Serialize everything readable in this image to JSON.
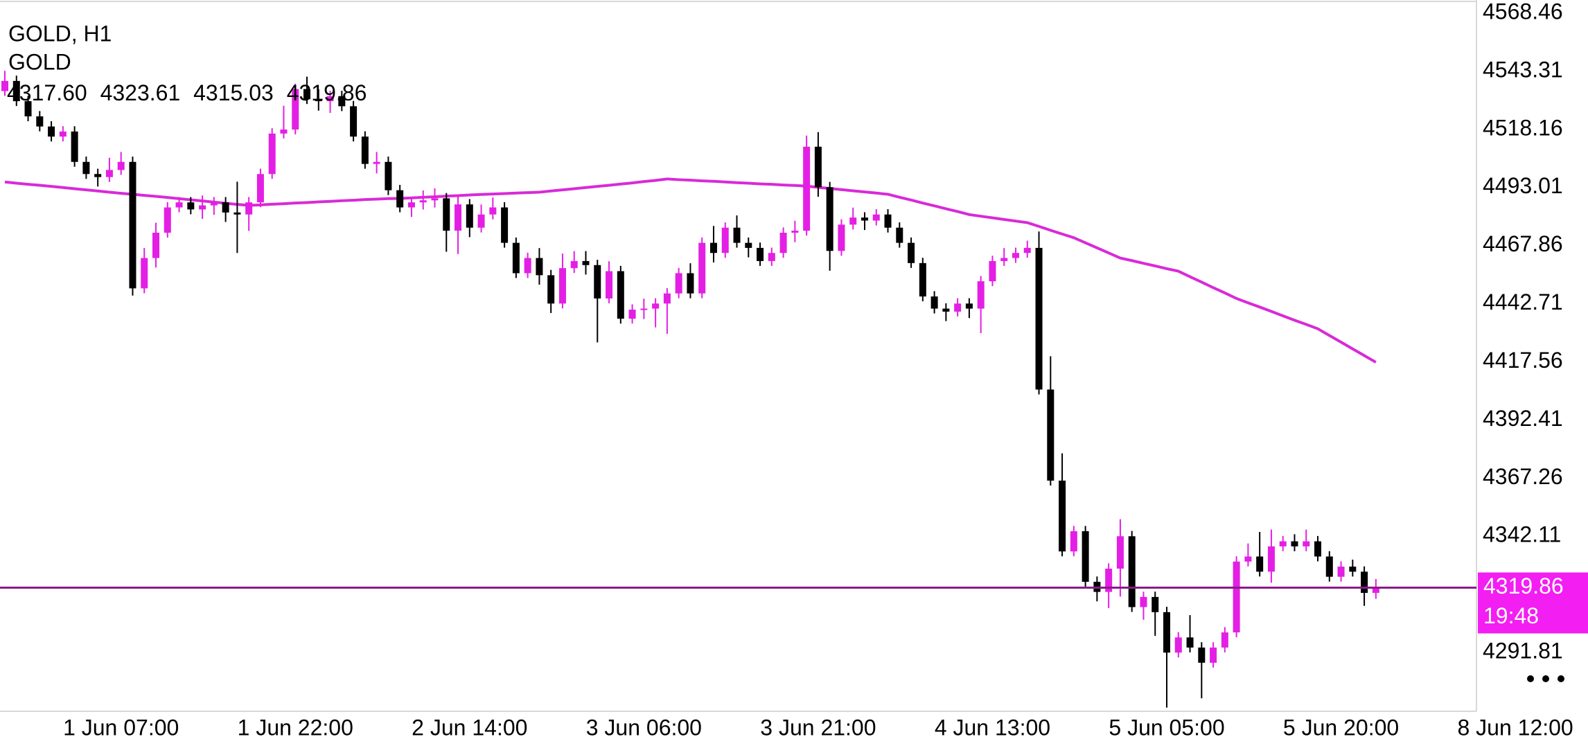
{
  "chart_data": {
    "type": "candlestick",
    "legend": {
      "title": "GOLD, H1",
      "symbol": "GOLD",
      "ohlc": [
        "4317.60",
        "4323.61",
        "4315.03",
        "4319.86"
      ]
    },
    "categories": [
      null,
      null,
      null,
      null,
      null,
      null,
      null,
      null,
      null,
      null,
      "1 Jun 07:00",
      null,
      null,
      null,
      null,
      null,
      null,
      null,
      null,
      null,
      null,
      null,
      null,
      null,
      null,
      "1 Jun 22:00",
      null,
      null,
      null,
      null,
      null,
      null,
      null,
      null,
      null,
      null,
      null,
      null,
      null,
      null,
      "2 Jun 14:00",
      null,
      null,
      null,
      null,
      null,
      null,
      null,
      null,
      null,
      null,
      null,
      null,
      null,
      null,
      "3 Jun 06:00",
      null,
      null,
      null,
      null,
      null,
      null,
      null,
      null,
      null,
      null,
      null,
      null,
      null,
      null,
      "3 Jun 21:00",
      null,
      null,
      null,
      null,
      null,
      null,
      null,
      null,
      null,
      null,
      null,
      null,
      null,
      null,
      "4 Jun 13:00",
      null,
      null,
      null,
      null,
      null,
      null,
      null,
      null,
      null,
      null,
      null,
      null,
      null,
      null,
      "5 Jun 05:00",
      null,
      null,
      null,
      null,
      null,
      null,
      null,
      null,
      null,
      null,
      null,
      null,
      null,
      null,
      "5 Jun 20:00",
      null,
      null,
      null,
      null,
      null,
      null,
      null,
      null,
      null,
      null,
      null,
      null,
      null,
      null,
      "8 Jun 12:00"
    ],
    "open": [
      4534.75,
      4539.13,
      4530.37,
      4523.8,
      4519.42,
      4515.05,
      4517.24,
      4504.1,
      4498.85,
      4497.53,
      4500.6,
      4504.1,
      4449.38,
      4462.51,
      4473.46,
      4484.4,
      4486.59,
      4483.53,
      4485.28,
      4486.59,
      4482.21,
      4481.34,
      4486.59,
      4498.85,
      4516.36,
      4518.11,
      4535.62,
      4531.25,
      4530.37,
      4532.56,
      4528.18,
      4515.05,
      4503.23,
      4504.1,
      4491.84,
      4484.4,
      4486.59,
      4487.47,
      4488.34,
      4474.33,
      4485.71,
      4475.64,
      4481.34,
      4484.4,
      4469.08,
      4455.94,
      4462.51,
      4455.07,
      4442.81,
      4458.13,
      4461.2,
      4459.45,
      4445.0,
      4456.82,
      4436.24,
      4440.18,
      4440.62,
      4442.81,
      4447.19,
      4455.94,
      4447.19,
      4469.08,
      4464.7,
      4475.64,
      4469.08,
      4466.89,
      4461.2,
      4464.7,
      4473.46,
      4474.33,
      4510.67,
      4493.16,
      4465.58,
      4476.96,
      4480.02,
      4478.71,
      4481.34,
      4475.64,
      4469.08,
      4460.32,
      4445.87,
      4440.62,
      4439.31,
      4442.81,
      4440.62,
      4452.44,
      4461.2,
      4462.51,
      4464.7,
      4466.89,
      4405.6,
      4366.19,
      4335.55,
      4344.3,
      4322.41,
      4318.04,
      4328.11,
      4342.12,
      4311.47,
      4315.85,
      4309.28,
      4291.77,
      4298.34,
      4293.96,
      4287.39,
      4293.96,
      4300.52,
      4331.17,
      4333.36,
      4326.79,
      4337.74,
      4339.93,
      4337.74,
      4339.93,
      4333.36,
      4324.6,
      4328.98,
      4326.79,
      4317.6,
      null,
      null,
      null,
      null,
      null,
      null,
      null,
      null,
      null,
      null,
      null,
      null
    ],
    "high": [
      4543.5,
      4541.43,
      4532.67,
      4526.1,
      4521.72,
      4519.54,
      4519.54,
      4506.4,
      4501.15,
      4505.9,
      4508.4,
      4506.4,
      4466.81,
      4477.76,
      4486.7,
      4488.89,
      4488.89,
      4489.58,
      4488.89,
      4488.89,
      4495.51,
      4488.89,
      4501.15,
      4518.66,
      4528.41,
      4537.92,
      4541.0,
      4535.55,
      4534.86,
      4534.86,
      4530.48,
      4517.35,
      4508.4,
      4506.4,
      4494.14,
      4488.89,
      4491.77,
      4492.64,
      4490.64,
      4490.01,
      4488.01,
      4485.64,
      4488.7,
      4486.7,
      4471.38,
      4464.81,
      4466.81,
      4457.37,
      4464.43,
      4465.5,
      4465.5,
      4461.75,
      4461.12,
      4459.12,
      4442.48,
      4444.92,
      4445.11,
      4449.49,
      4458.24,
      4460.24,
      4471.38,
      4476.38,
      4477.94,
      4480.94,
      4471.38,
      4469.19,
      4467.0,
      4475.76,
      4478.63,
      4515.5,
      4517.0,
      4495.46,
      4479.26,
      4484.32,
      4482.32,
      4483.64,
      4483.64,
      4477.94,
      4471.38,
      4462.62,
      4448.17,
      4442.92,
      4445.11,
      4445.11,
      4454.74,
      4463.5,
      4466.81,
      4467.0,
      4470.0,
      4474.0,
      4420.0,
      4378.0,
      4346.6,
      4346.6,
      4324.71,
      4330.41,
      4349.5,
      4344.42,
      4318.15,
      4318.15,
      4311.58,
      4300.64,
      4308.0,
      4296.26,
      4296.26,
      4302.82,
      4333.47,
      4339.0,
      4344.0,
      4345.0,
      4342.23,
      4343.0,
      4345.0,
      4342.23,
      4335.66,
      4331.28,
      4332.0,
      4329.09,
      4323.61,
      null,
      null,
      null,
      null,
      null,
      null,
      null,
      null,
      null,
      null,
      null,
      null
    ],
    "low": [
      4532.65,
      4528.27,
      4521.7,
      4517.32,
      4512.95,
      4512.95,
      4502.0,
      4496.75,
      4493.43,
      4495.43,
      4498.5,
      4446.28,
      4447.28,
      4458.41,
      4471.36,
      4482.3,
      4481.43,
      4479.43,
      4481.18,
      4478.11,
      4464.71,
      4474.24,
      4484.49,
      4496.75,
      4514.26,
      4516.01,
      4529.15,
      4526.27,
      4525.27,
      4526.08,
      4512.95,
      4501.13,
      4499.13,
      4489.74,
      4482.3,
      4480.3,
      4483.49,
      4484.37,
      4465.23,
      4464.23,
      4471.54,
      4473.54,
      4479.24,
      4466.98,
      4453.84,
      4453.84,
      4450.97,
      4438.71,
      4440.71,
      4456.03,
      4455.35,
      4426.0,
      4442.9,
      4434.14,
      4434.14,
      4436.08,
      4432.5,
      4429.7,
      4445.09,
      4445.09,
      4445.09,
      4460.6,
      4462.6,
      4466.98,
      4462.79,
      4459.1,
      4459.1,
      4462.6,
      4469.36,
      4472.23,
      4489.0,
      4457.0,
      4463.48,
      4474.86,
      4474.61,
      4476.61,
      4473.54,
      4466.98,
      4458.22,
      4443.77,
      4438.52,
      4435.21,
      4437.21,
      4436.52,
      4430.0,
      4450.34,
      4459.1,
      4460.41,
      4462.6,
      4403.5,
      4364.09,
      4333.45,
      4333.45,
      4320.31,
      4313.94,
      4311.0,
      4316.0,
      4309.37,
      4306.0,
      4299.0,
      4268.0,
      4289.67,
      4291.86,
      4272.0,
      4285.29,
      4291.86,
      4298.42,
      4329.07,
      4324.69,
      4322.0,
      4335.64,
      4335.64,
      4335.64,
      4331.26,
      4322.5,
      4322.5,
      4324.69,
      4312.0,
      4315.03,
      null,
      null,
      null,
      null,
      null,
      null,
      null,
      null,
      null,
      null,
      null,
      null
    ],
    "close": [
      4539.13,
      4530.37,
      4523.8,
      4519.42,
      4515.05,
      4517.24,
      4504.1,
      4498.85,
      4497.53,
      4500.6,
      4504.1,
      4449.38,
      4462.51,
      4473.46,
      4484.4,
      4486.59,
      4483.53,
      4485.28,
      4486.59,
      4482.21,
      4481.34,
      4486.59,
      4498.85,
      4516.36,
      4518.11,
      4535.62,
      4531.25,
      4530.37,
      4532.56,
      4528.18,
      4515.05,
      4503.23,
      4504.1,
      4491.84,
      4484.4,
      4486.59,
      4487.47,
      4488.34,
      4474.33,
      4485.71,
      4475.64,
      4481.34,
      4484.4,
      4469.08,
      4455.94,
      4462.51,
      4455.07,
      4442.81,
      4458.13,
      4461.2,
      4459.45,
      4445.0,
      4456.82,
      4436.24,
      4440.18,
      4440.62,
      4442.81,
      4447.19,
      4455.94,
      4447.19,
      4469.08,
      4464.7,
      4475.64,
      4469.08,
      4466.89,
      4461.2,
      4464.7,
      4473.46,
      4474.33,
      4510.67,
      4493.16,
      4465.58,
      4476.96,
      4480.02,
      4478.71,
      4481.34,
      4475.64,
      4469.08,
      4460.32,
      4445.87,
      4440.62,
      4439.31,
      4442.81,
      4440.62,
      4452.44,
      4461.2,
      4462.51,
      4464.7,
      4466.89,
      4405.6,
      4366.19,
      4335.55,
      4344.3,
      4322.41,
      4318.04,
      4328.11,
      4342.12,
      4311.47,
      4315.85,
      4309.28,
      4291.77,
      4298.34,
      4293.96,
      4287.39,
      4293.96,
      4300.52,
      4331.17,
      4333.36,
      4326.79,
      4337.74,
      4339.93,
      4337.74,
      4339.93,
      4333.36,
      4324.6,
      4328.98,
      4326.79,
      4317.6,
      4319.86,
      null,
      null,
      null,
      null,
      null,
      null,
      null,
      null,
      null,
      null,
      null,
      null
    ],
    "up_color": "#e41fe4",
    "down_color": "#000000",
    "ma": {
      "color": "#d82ad8",
      "values": [
        4495.4,
        4494.9,
        4494.4,
        4494.0,
        4493.5,
        4493.0,
        4492.5,
        4492.0,
        4491.5,
        4491.0,
        4490.5,
        4490.1,
        4489.6,
        4489.2,
        4488.7,
        4488.2,
        4487.7,
        4487.2,
        4486.7,
        4486.2,
        4485.7,
        4485.3,
        4485.5,
        4485.8,
        4486.0,
        4486.3,
        4486.5,
        4486.8,
        4487.0,
        4487.3,
        4487.5,
        4487.8,
        4488.0,
        4488.2,
        4488.3,
        4488.5,
        4488.8,
        4489.0,
        4489.3,
        4489.5,
        4489.8,
        4490.0,
        4490.2,
        4490.4,
        4490.6,
        4490.8,
        4491.0,
        4491.5,
        4492.0,
        4492.5,
        4493.0,
        4493.5,
        4494.0,
        4494.5,
        4495.0,
        4495.6,
        4496.1,
        4496.7,
        4496.4,
        4496.2,
        4495.9,
        4495.7,
        4495.4,
        4495.1,
        4494.9,
        4494.6,
        4494.4,
        4494.1,
        4493.9,
        4493.6,
        4493.1,
        4492.6,
        4492.1,
        4491.6,
        4491.1,
        4490.6,
        4490.1,
        4488.8,
        4487.6,
        4486.3,
        4485.1,
        4483.8,
        4482.6,
        4481.3,
        4480.6,
        4479.9,
        4479.2,
        4478.5,
        4477.8,
        4476.2,
        4474.5,
        4472.9,
        4471.3,
        4469.1,
        4466.9,
        4464.7,
        4462.5,
        4461.4,
        4460.2,
        4459.1,
        4457.9,
        4456.8,
        4454.4,
        4452.1,
        4449.7,
        4447.4,
        4445.0,
        4443.1,
        4441.3,
        4439.4,
        4437.5,
        4435.6,
        4433.8,
        4431.9,
        4429.0,
        4426.1,
        4423.2,
        4420.3,
        4417.4,
        null,
        null,
        null,
        null,
        null,
        null,
        null,
        null,
        null,
        null,
        null,
        null
      ]
    },
    "ylim": [
      4266.38,
      4574.15
    ],
    "yticks": [
      4568.46,
      4543.31,
      4518.16,
      4493.01,
      4467.86,
      4442.71,
      4417.56,
      4392.41,
      4367.26,
      4342.11,
      4291.81
    ],
    "price_line_color": "#8a1a8a",
    "price_tag_color": "#f21ef2",
    "countdown": "19:48"
  }
}
